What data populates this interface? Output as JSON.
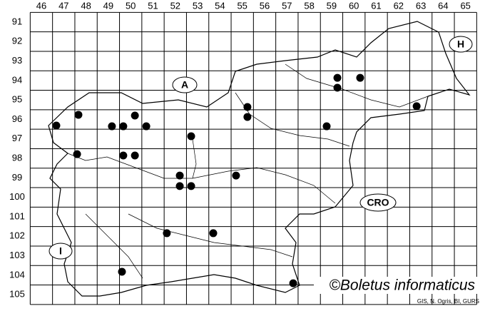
{
  "columns": [
    46,
    47,
    48,
    49,
    50,
    51,
    52,
    53,
    54,
    55,
    56,
    57,
    58,
    59,
    60,
    61,
    62,
    63,
    64,
    65
  ],
  "rows": [
    91,
    92,
    93,
    94,
    95,
    96,
    97,
    98,
    99,
    100,
    101,
    102,
    103,
    104,
    105
  ],
  "countries": [
    "A",
    "H",
    "I",
    "CRO"
  ],
  "records": [
    {
      "col": 46.67,
      "row": 96.31
    },
    {
      "col": 47.66,
      "row": 95.76
    },
    {
      "col": 47.6,
      "row": 97.78
    },
    {
      "col": 49.16,
      "row": 96.35
    },
    {
      "col": 49.67,
      "row": 96.35
    },
    {
      "col": 50.19,
      "row": 95.8
    },
    {
      "col": 50.7,
      "row": 96.35
    },
    {
      "col": 49.67,
      "row": 97.85
    },
    {
      "col": 50.19,
      "row": 97.85
    },
    {
      "col": 52.71,
      "row": 96.86
    },
    {
      "col": 52.2,
      "row": 98.88
    },
    {
      "col": 52.2,
      "row": 99.42
    },
    {
      "col": 52.71,
      "row": 99.42
    },
    {
      "col": 54.72,
      "row": 98.88
    },
    {
      "col": 55.23,
      "row": 95.36
    },
    {
      "col": 55.23,
      "row": 95.87
    },
    {
      "col": 51.62,
      "row": 101.84
    },
    {
      "col": 53.7,
      "row": 101.84
    },
    {
      "col": 49.61,
      "row": 103.82
    },
    {
      "col": 57.28,
      "row": 104.41
    },
    {
      "col": 59.26,
      "row": 93.86
    },
    {
      "col": 59.26,
      "row": 94.37
    },
    {
      "col": 60.28,
      "row": 93.86
    },
    {
      "col": 58.78,
      "row": 96.35
    },
    {
      "col": 62.81,
      "row": 95.32
    }
  ],
  "copyright": "©Boletus informaticus",
  "credits": "GIS, N. Ogris, BI, GURS"
}
